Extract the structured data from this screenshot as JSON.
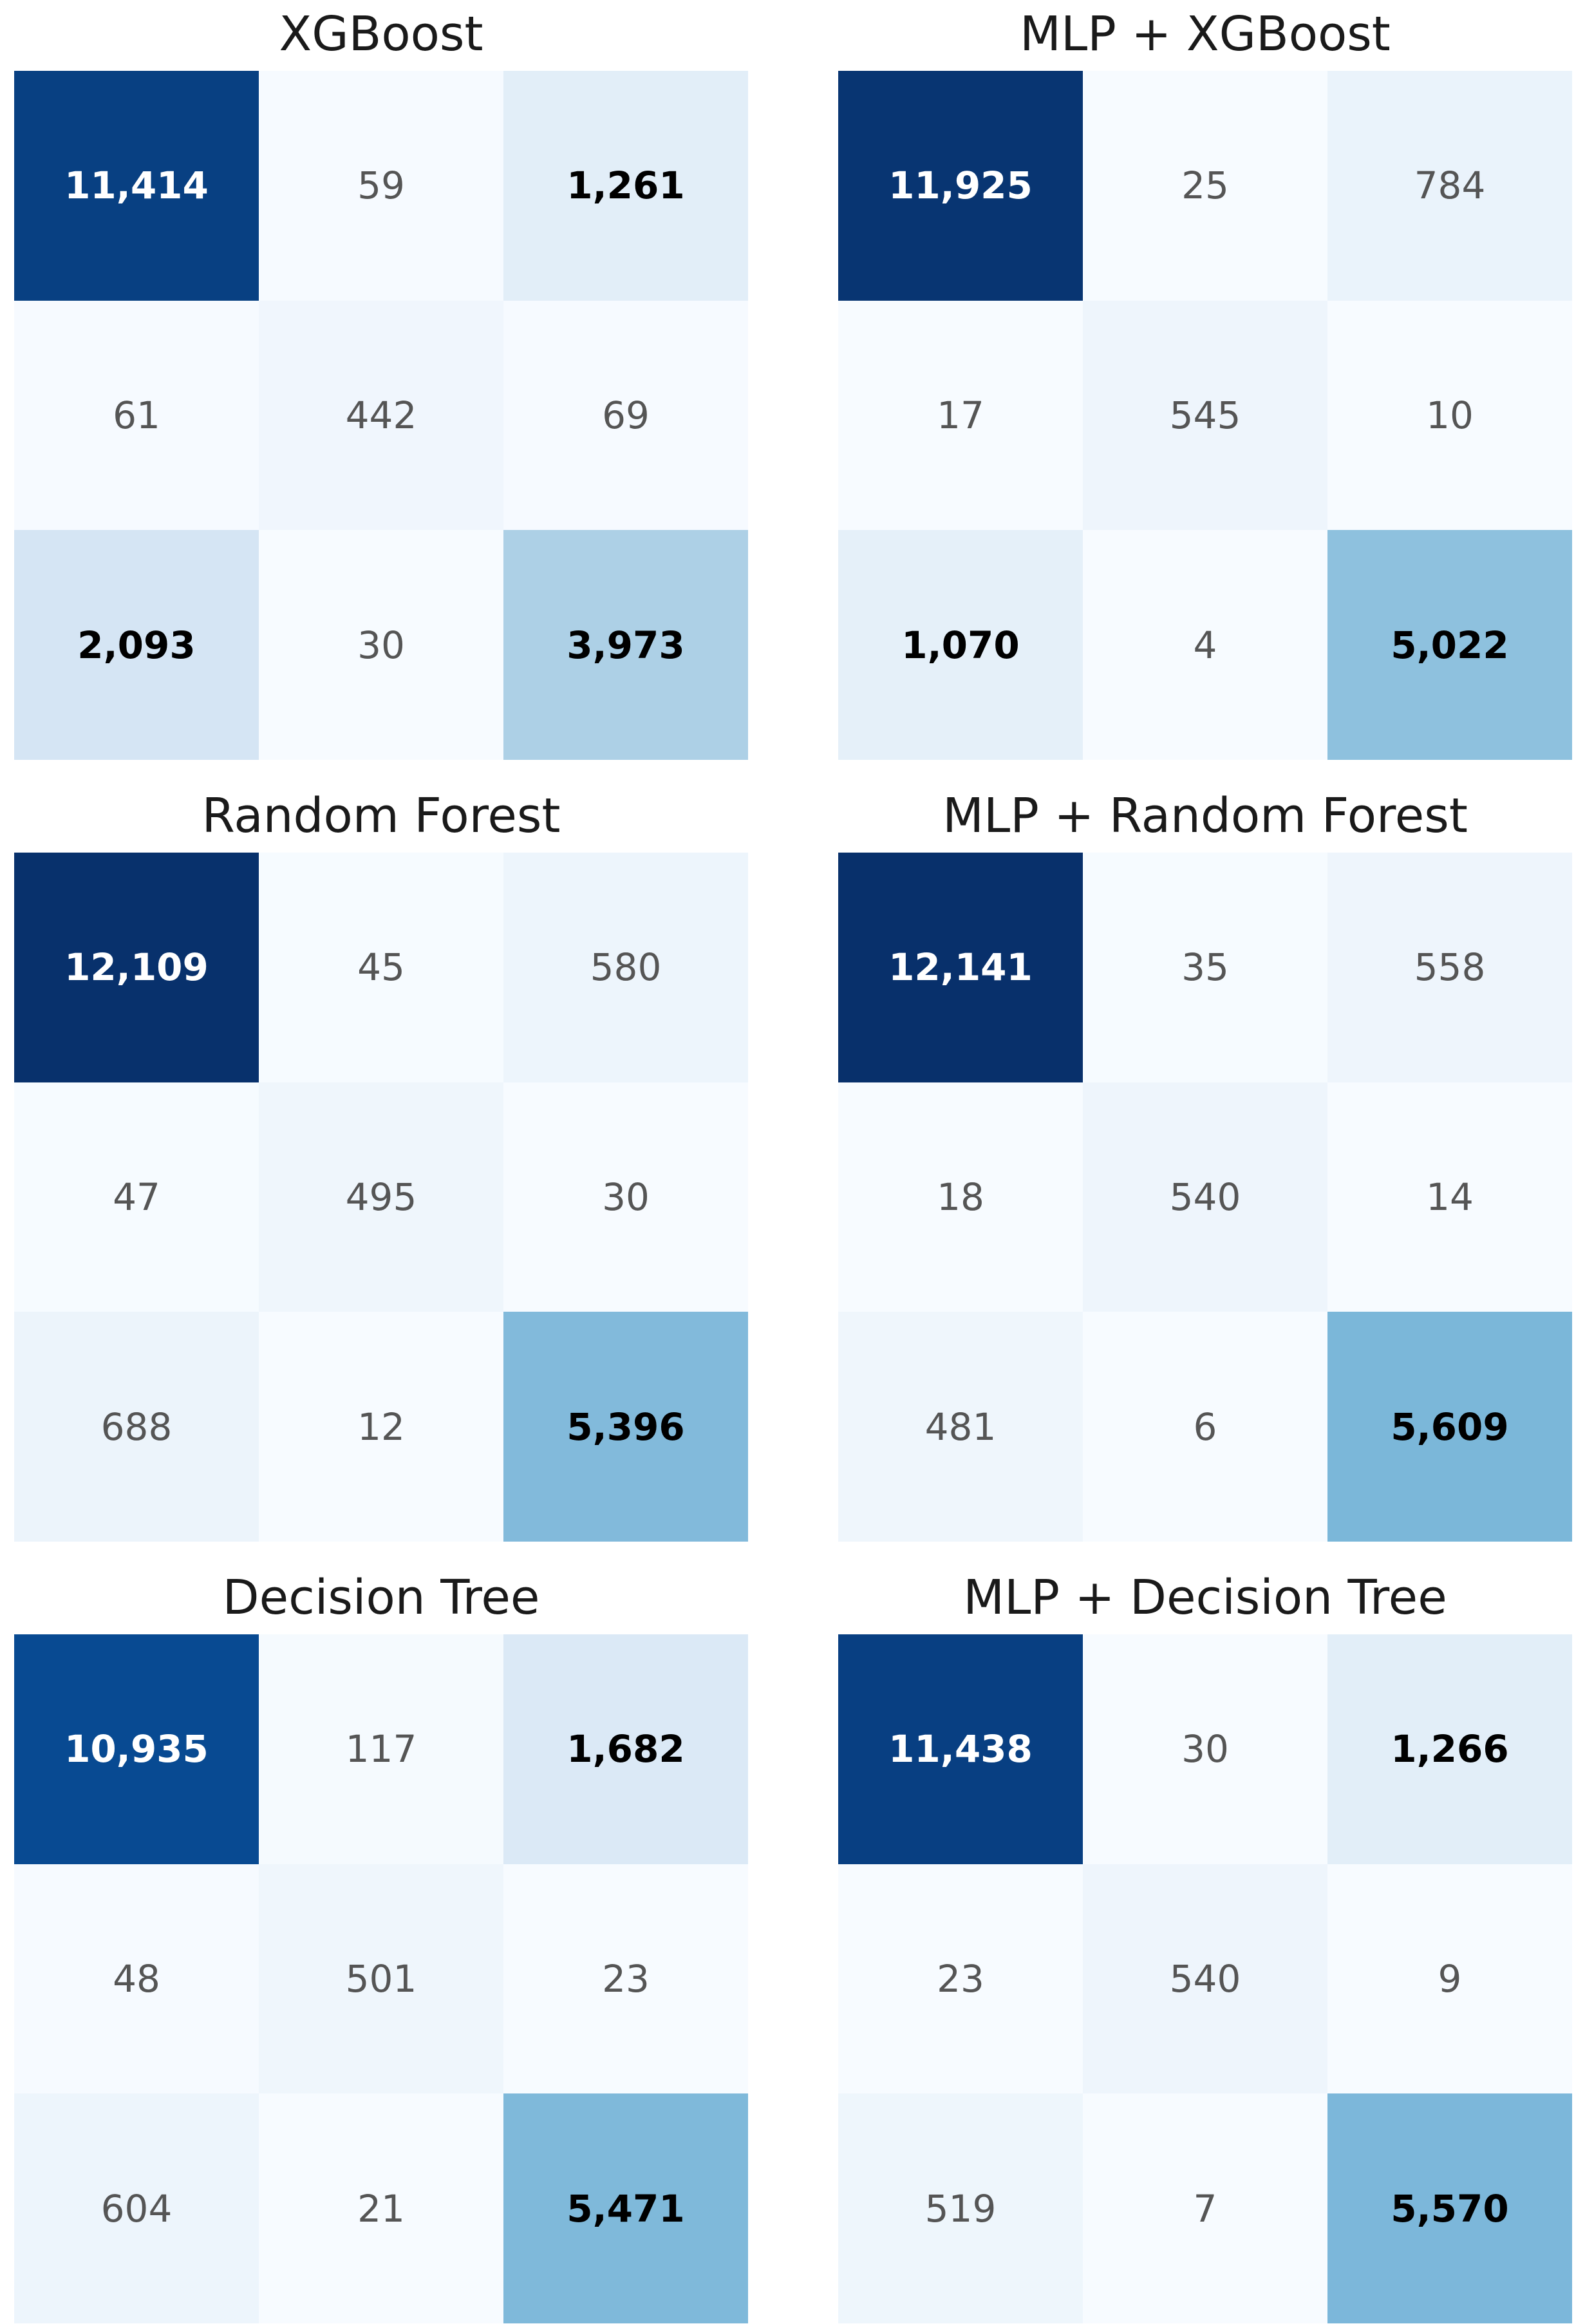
{
  "chart_data": [
    {
      "type": "heatmap",
      "title": "XGBoost",
      "matrix": [
        [
          11414,
          59,
          1261
        ],
        [
          61,
          442,
          69
        ],
        [
          2093,
          30,
          3973
        ]
      ],
      "labels": [
        [
          "11,414",
          "59",
          "1,261"
        ],
        [
          "61",
          "442",
          "69"
        ],
        [
          "2,093",
          "30",
          "3,973"
        ]
      ],
      "colormap": "Blues",
      "vmax": 12141
    },
    {
      "type": "heatmap",
      "title": "MLP + XGBoost",
      "matrix": [
        [
          11925,
          25,
          784
        ],
        [
          17,
          545,
          10
        ],
        [
          1070,
          4,
          5022
        ]
      ],
      "labels": [
        [
          "11,925",
          "25",
          "784"
        ],
        [
          "17",
          "545",
          "10"
        ],
        [
          "1,070",
          "4",
          "5,022"
        ]
      ],
      "colormap": "Blues",
      "vmax": 12141
    },
    {
      "type": "heatmap",
      "title": "Random Forest",
      "matrix": [
        [
          12109,
          45,
          580
        ],
        [
          47,
          495,
          30
        ],
        [
          688,
          12,
          5396
        ]
      ],
      "labels": [
        [
          "12,109",
          "45",
          "580"
        ],
        [
          "47",
          "495",
          "30"
        ],
        [
          "688",
          "12",
          "5,396"
        ]
      ],
      "colormap": "Blues",
      "vmax": 12141
    },
    {
      "type": "heatmap",
      "title": "MLP + Random Forest",
      "matrix": [
        [
          12141,
          35,
          558
        ],
        [
          18,
          540,
          14
        ],
        [
          481,
          6,
          5609
        ]
      ],
      "labels": [
        [
          "12,141",
          "35",
          "558"
        ],
        [
          "18",
          "540",
          "14"
        ],
        [
          "481",
          "6",
          "5,609"
        ]
      ],
      "colormap": "Blues",
      "vmax": 12141
    },
    {
      "type": "heatmap",
      "title": "Decision Tree",
      "matrix": [
        [
          10935,
          117,
          1682
        ],
        [
          48,
          501,
          23
        ],
        [
          604,
          21,
          5471
        ]
      ],
      "labels": [
        [
          "10,935",
          "117",
          "1,682"
        ],
        [
          "48",
          "501",
          "23"
        ],
        [
          "604",
          "21",
          "5,471"
        ]
      ],
      "colormap": "Blues",
      "vmax": 12141
    },
    {
      "type": "heatmap",
      "title": "MLP + Decision Tree",
      "matrix": [
        [
          11438,
          30,
          1266
        ],
        [
          23,
          540,
          9
        ],
        [
          519,
          7,
          5570
        ]
      ],
      "labels": [
        [
          "11,438",
          "30",
          "1,266"
        ],
        [
          "23",
          "540",
          "9"
        ],
        [
          "519",
          "7",
          "5,570"
        ]
      ],
      "colormap": "Blues",
      "vmax": 12141
    }
  ],
  "colors": {
    "low": "#f7fbff",
    "high": "#08306b",
    "dark_text": "#000000",
    "muted_text": "#555555",
    "light_text": "#ffffff"
  }
}
